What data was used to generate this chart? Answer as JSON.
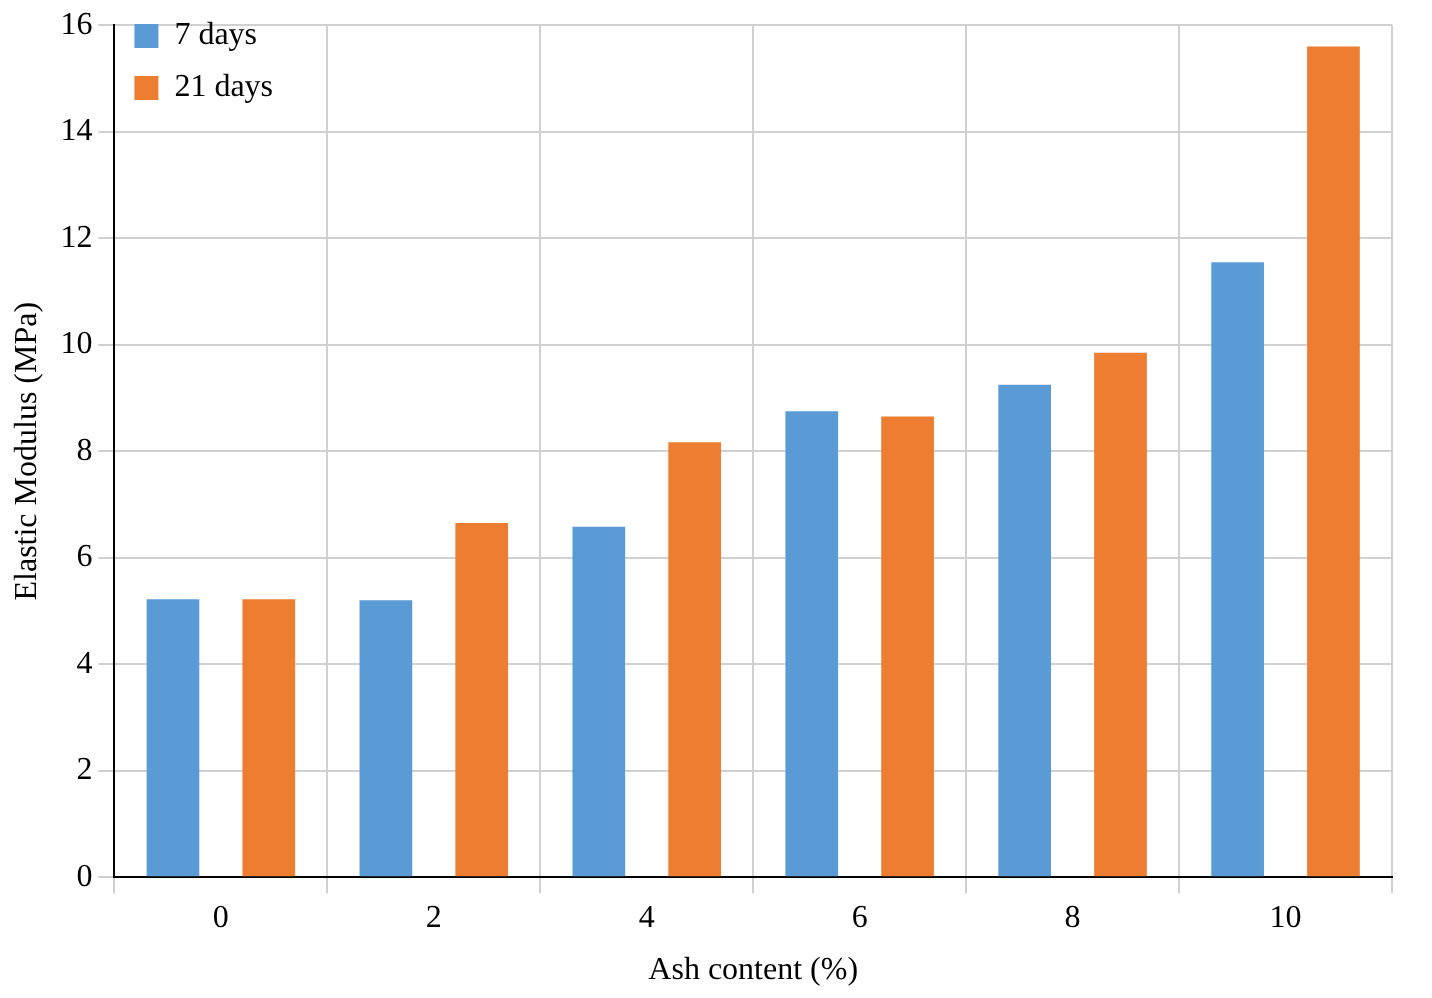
{
  "chart_data": {
    "type": "bar",
    "xlabel": "Ash content (%)",
    "ylabel": "Elastic Modulus (MPa)",
    "categories": [
      "0",
      "2",
      "4",
      "6",
      "8",
      "10"
    ],
    "series": [
      {
        "name": "7 days",
        "color": "#5b9bd5",
        "values": [
          5.22,
          5.2,
          6.58,
          8.75,
          9.25,
          11.55
        ]
      },
      {
        "name": "21 days",
        "color": "#ed7d31",
        "values": [
          5.22,
          6.65,
          8.17,
          8.65,
          9.85,
          15.6
        ]
      }
    ],
    "ylim": [
      0,
      16
    ],
    "yticks": [
      0,
      2,
      4,
      6,
      8,
      10,
      12,
      14,
      16
    ],
    "grid": true,
    "legend": "top left"
  }
}
